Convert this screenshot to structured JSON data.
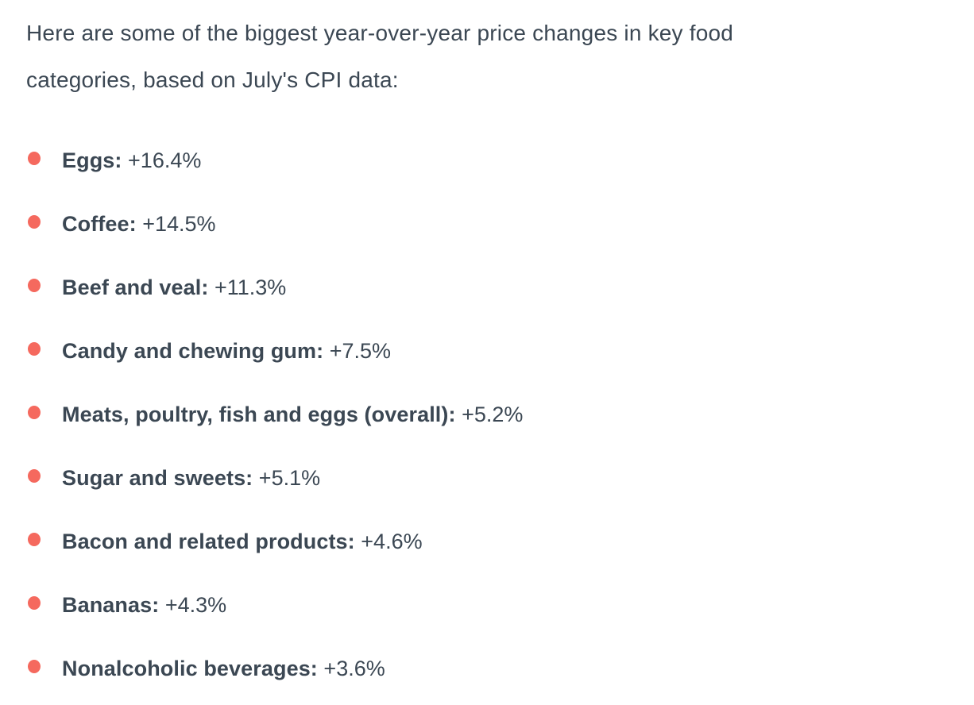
{
  "colors": {
    "text": "#3b4753",
    "bullet": "#f5695e",
    "background": "#ffffff"
  },
  "intro": {
    "text": "Here are some of the biggest year-over-year price changes in key food categories, based on July's CPI data:"
  },
  "price_changes": {
    "items": [
      {
        "label": "Eggs:",
        "value": "+16.4%"
      },
      {
        "label": "Coffee:",
        "value": "+14.5%"
      },
      {
        "label": "Beef and veal:",
        "value": "+11.3%"
      },
      {
        "label": "Candy and chewing gum:",
        "value": "+7.5%"
      },
      {
        "label": "Meats, poultry, fish and eggs (overall):",
        "value": "+5.2%"
      },
      {
        "label": "Sugar and sweets:",
        "value": "+5.1%"
      },
      {
        "label": "Bacon and related products:",
        "value": "+4.6%"
      },
      {
        "label": "Bananas:",
        "value": "+4.3%"
      },
      {
        "label": "Nonalcoholic beverages:",
        "value": "+3.6%"
      }
    ]
  }
}
